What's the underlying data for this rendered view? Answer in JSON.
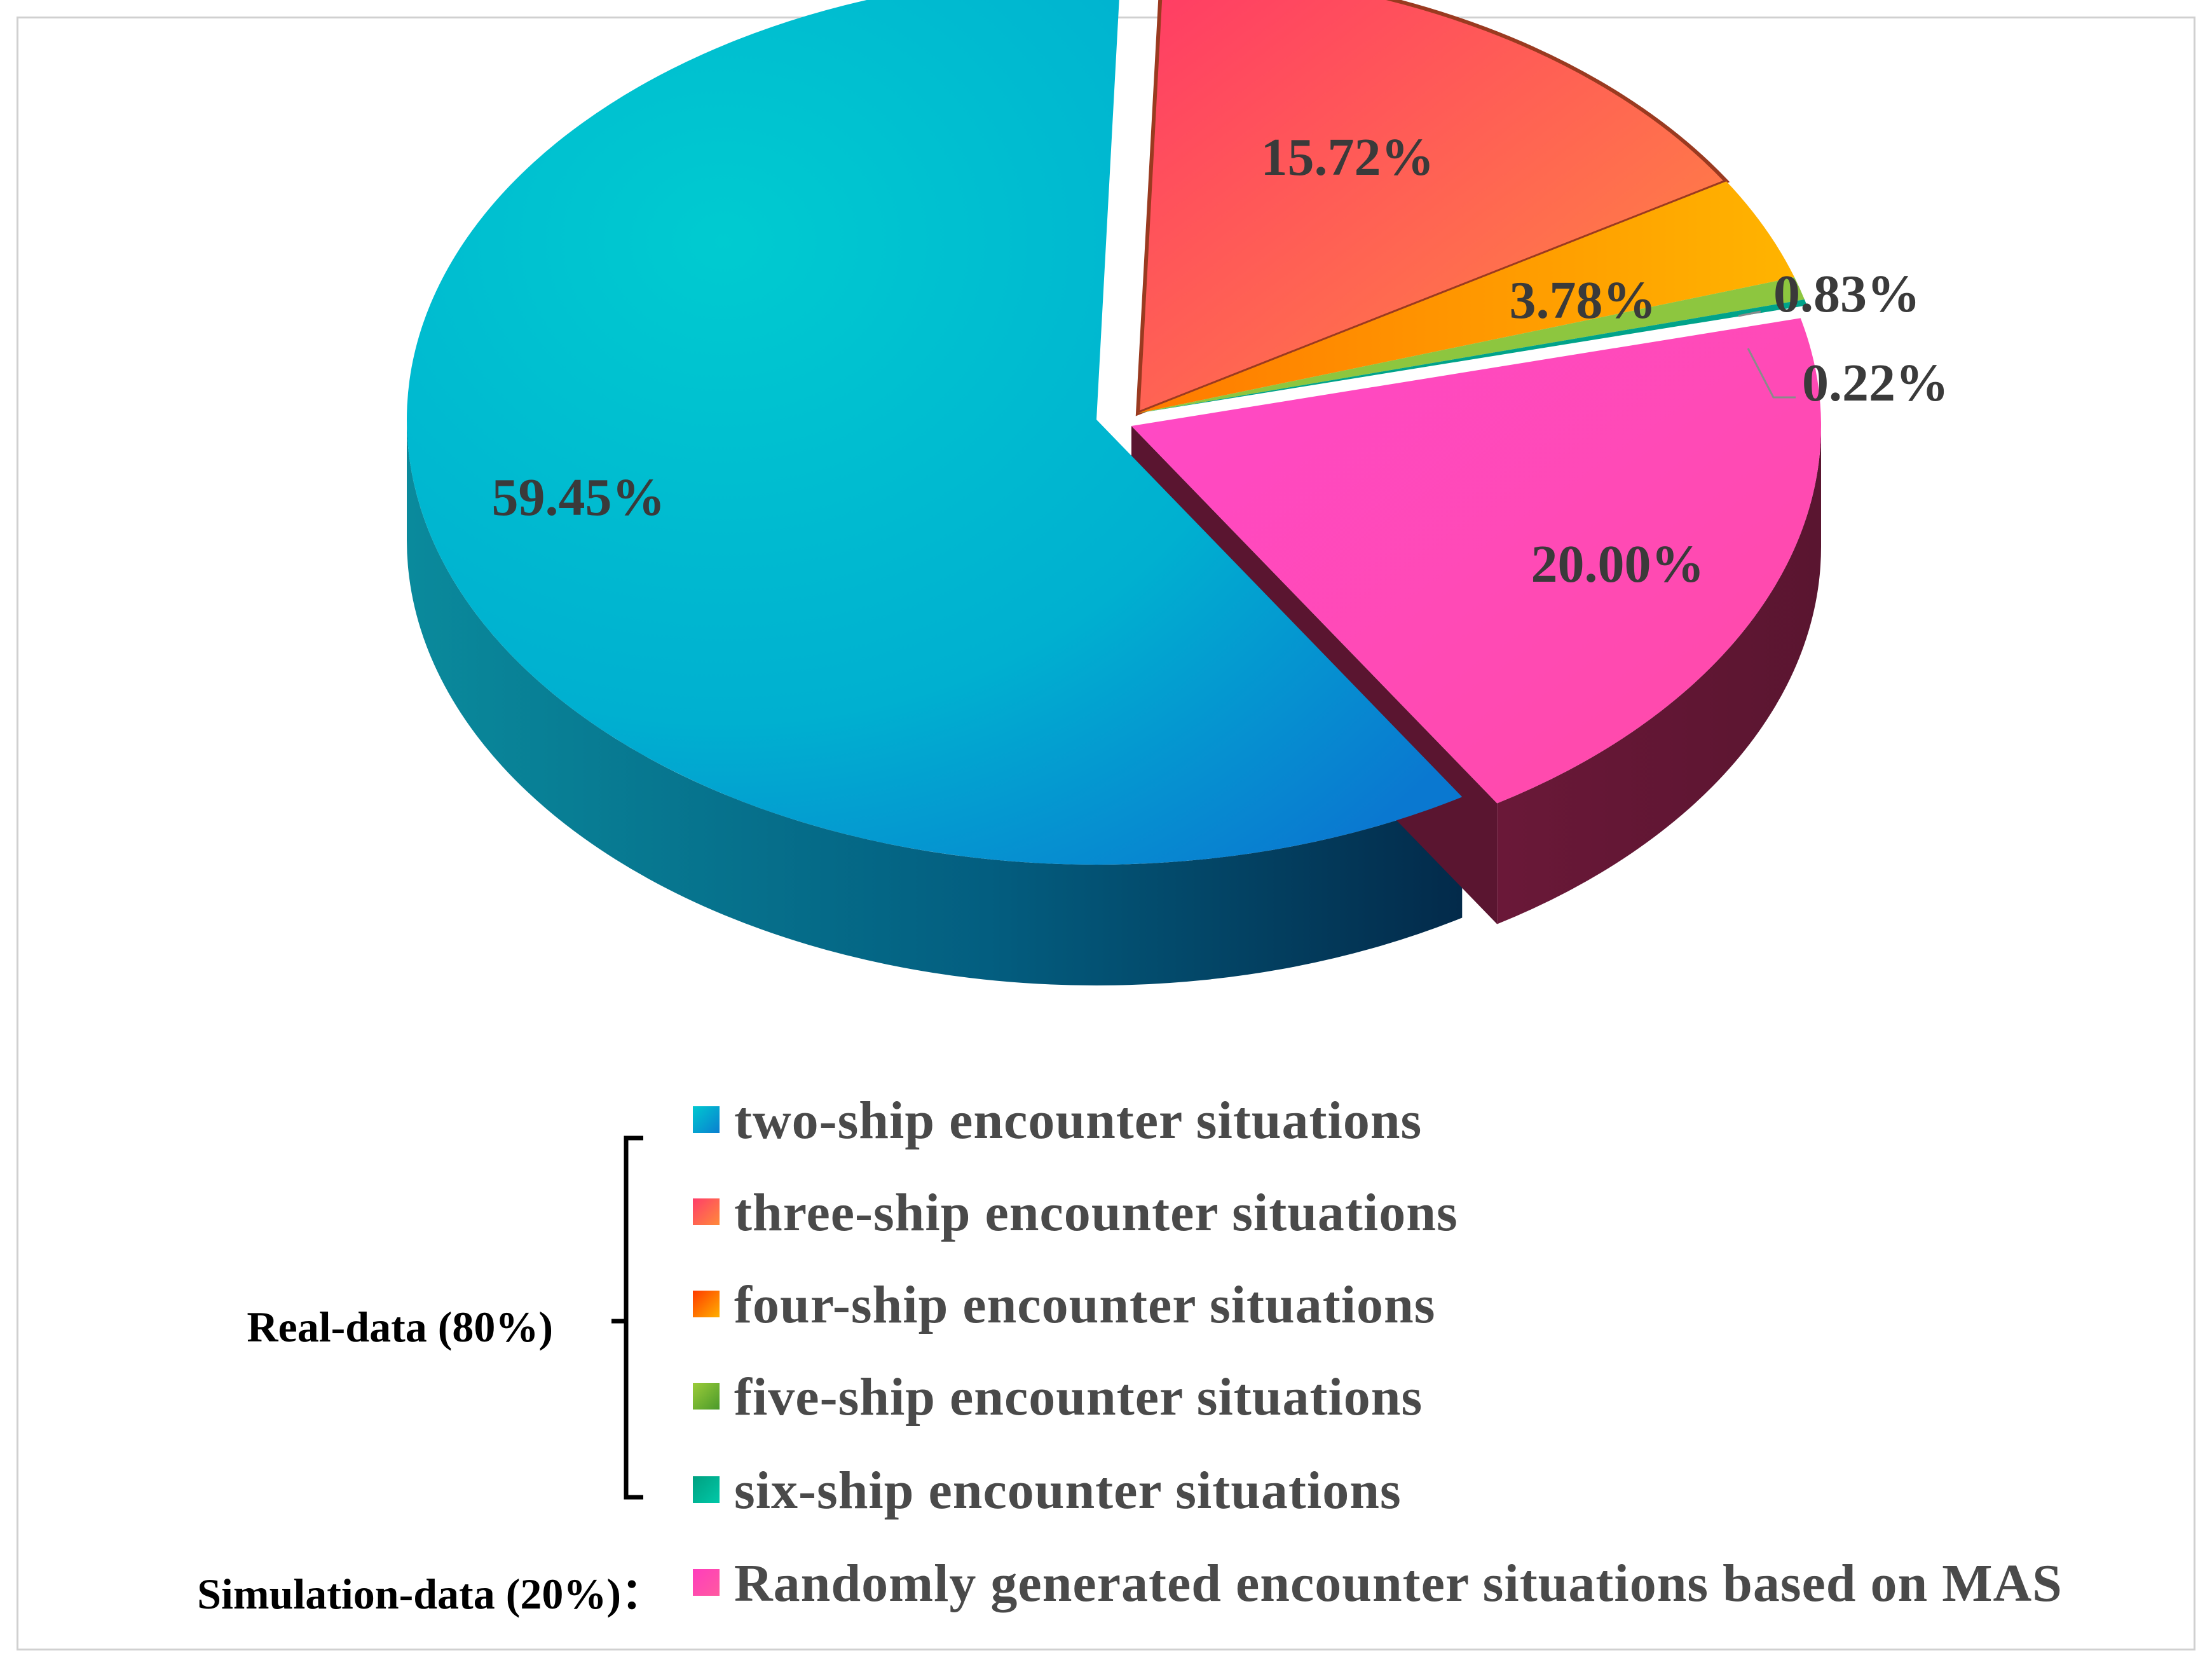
{
  "chart_data": {
    "type": "pie",
    "style": "3d-exploded",
    "slices": [
      {
        "label": "two-ship encounter situations",
        "value": 59.45,
        "display": "59.45%",
        "group": "real",
        "color": "#00b8c8",
        "color_end": "#0a7fd0"
      },
      {
        "label": "three-ship encounter situations",
        "value": 15.72,
        "display": "15.72%",
        "group": "real",
        "color": "#ff3d6a",
        "color_end": "#ff8a3a"
      },
      {
        "label": "four-ship encounter situations",
        "value": 3.78,
        "display": "3.78%",
        "group": "real",
        "color": "#ff8a00",
        "color_end": "#ffb000"
      },
      {
        "label": "five-ship encounter situations",
        "value": 0.83,
        "display": "0.83%",
        "group": "real",
        "color": "#8dc63f",
        "color_end": "#5aa02c"
      },
      {
        "label": "six-ship encounter situations",
        "value": 0.22,
        "display": "0.22%",
        "group": "real",
        "color": "#00a38a",
        "color_end": "#00c7a0"
      },
      {
        "label": "Randomly generated encounter situations based on MAS",
        "value": 20.0,
        "display": "20.00%",
        "group": "simulation",
        "color": "#ff3dbd",
        "color_end": "#ff4fa8"
      }
    ],
    "groups": {
      "real": "Real-data (80%)",
      "simulation": "Simulation-data (20%)："
    }
  }
}
